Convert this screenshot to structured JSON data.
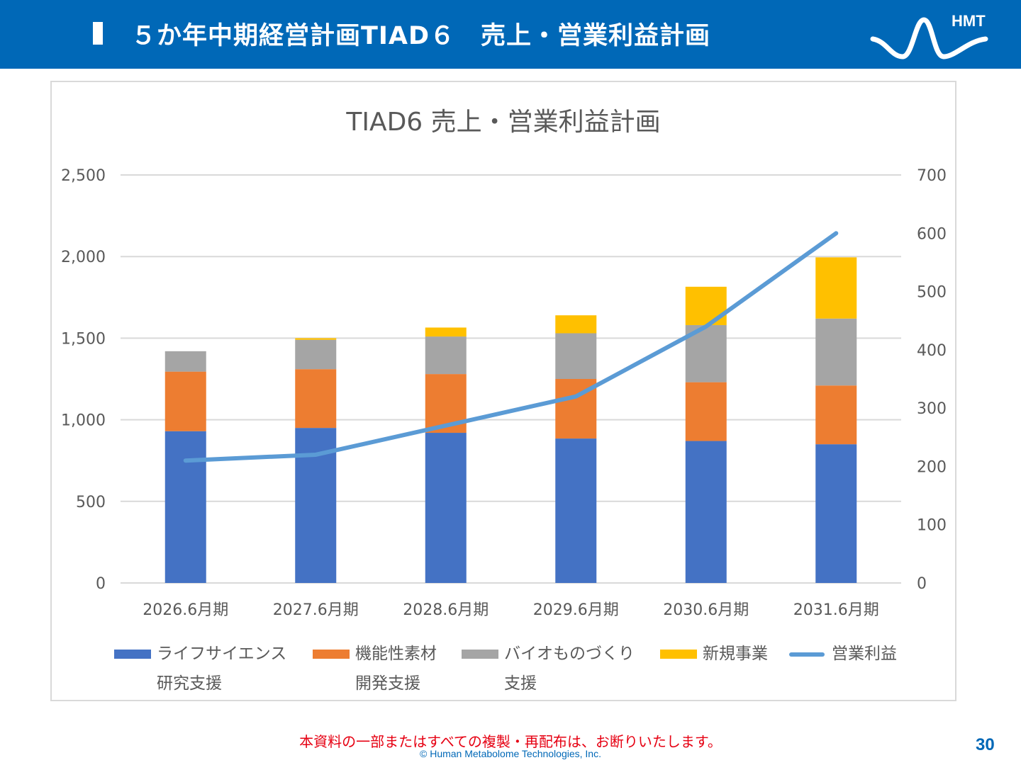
{
  "header": {
    "title": "５か年中期経営計画TIAD６　売上・営業利益計画",
    "logo_text": "HMT",
    "bg_color": "#0068b7"
  },
  "chart_data": {
    "type": "bar",
    "title": "TIAD6 売上・営業利益計画",
    "categories": [
      "2026.6月期",
      "2027.6月期",
      "2028.6月期",
      "2029.6月期",
      "2030.6月期",
      "2031.6月期"
    ],
    "series": [
      {
        "name": "ライフサイエンス研究支援",
        "name_lines": [
          "ライフサイエンス",
          "研究支援"
        ],
        "type": "bar",
        "axis": "left",
        "color": "#4472c4",
        "values": [
          930,
          950,
          920,
          885,
          870,
          850
        ]
      },
      {
        "name": "機能性素材開発支援",
        "name_lines": [
          "機能性素材",
          "開発支援"
        ],
        "type": "bar",
        "axis": "left",
        "color": "#ed7d31",
        "values": [
          365,
          360,
          360,
          365,
          360,
          360
        ]
      },
      {
        "name": "バイオものづくり支援",
        "name_lines": [
          "バイオものづくり",
          "支援"
        ],
        "type": "bar",
        "axis": "left",
        "color": "#a5a5a5",
        "values": [
          125,
          180,
          230,
          280,
          350,
          410
        ]
      },
      {
        "name": "新規事業",
        "name_lines": [
          "新規事業"
        ],
        "type": "bar",
        "axis": "left",
        "color": "#ffc000",
        "values": [
          0,
          10,
          55,
          110,
          235,
          375
        ]
      },
      {
        "name": "営業利益",
        "name_lines": [
          "営業利益"
        ],
        "type": "line",
        "axis": "right",
        "color": "#5b9bd5",
        "values": [
          210,
          220,
          270,
          320,
          440,
          600
        ]
      }
    ],
    "y_left": {
      "min": 0,
      "max": 2500,
      "ticks": [
        "0",
        "500",
        "1,000",
        "1,500",
        "2,000",
        "2,500"
      ]
    },
    "y_right": {
      "min": 0,
      "max": 700,
      "ticks": [
        "0",
        "100",
        "200",
        "300",
        "400",
        "500",
        "600",
        "700"
      ]
    },
    "grid": true,
    "legend_position": "bottom"
  },
  "footer": {
    "note": "本資料の一部またはすべての複製・再配布は、お断りいたします。",
    "copyright": "© Human Metabolome Technologies, Inc.",
    "page_number": "30"
  }
}
